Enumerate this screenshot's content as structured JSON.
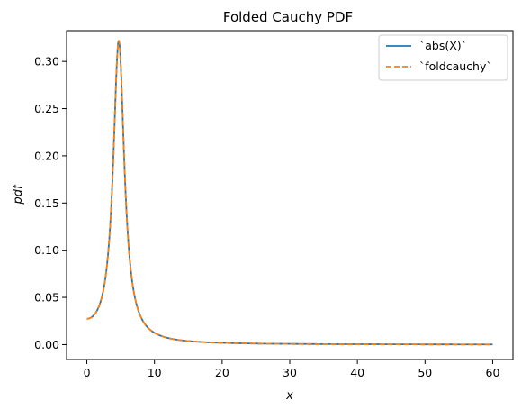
{
  "chart_data": {
    "type": "line",
    "title": "Folded Cauchy PDF",
    "xlabel": "x",
    "ylabel": "pdf",
    "xlim": [
      -3,
      63
    ],
    "ylim": [
      -0.0158,
      0.3326
    ],
    "xticks": [
      0,
      10,
      20,
      30,
      40,
      50,
      60
    ],
    "xtick_labels": [
      "0",
      "10",
      "20",
      "30",
      "40",
      "50",
      "60"
    ],
    "yticks": [
      0.0,
      0.05,
      0.1,
      0.15,
      0.2,
      0.25,
      0.3
    ],
    "ytick_labels": [
      "0.00",
      "0.05",
      "0.10",
      "0.15",
      "0.20",
      "0.25",
      "0.30"
    ],
    "grid": false,
    "legend_position": "top-right",
    "x_range": [
      0,
      60
    ],
    "parameters": {
      "c": 4.72,
      "scale": 1
    },
    "series": [
      {
        "name": "`abs(X)`",
        "color": "#1f77b4",
        "style": "solid"
      },
      {
        "name": "`foldcauchy`",
        "color": "#ff7f0e",
        "style": "dashed"
      }
    ],
    "sample_points": [
      {
        "x": 0,
        "y": 0.0273
      },
      {
        "x": 2,
        "y": 0.0376
      },
      {
        "x": 4,
        "y": 0.209
      },
      {
        "x": 4.72,
        "y": 0.3194
      },
      {
        "x": 6,
        "y": 0.1203
      },
      {
        "x": 10,
        "y": 0.0105
      },
      {
        "x": 20,
        "y": 0.0014
      },
      {
        "x": 40,
        "y": 0.0003
      },
      {
        "x": 60,
        "y": 0.0001
      }
    ]
  }
}
